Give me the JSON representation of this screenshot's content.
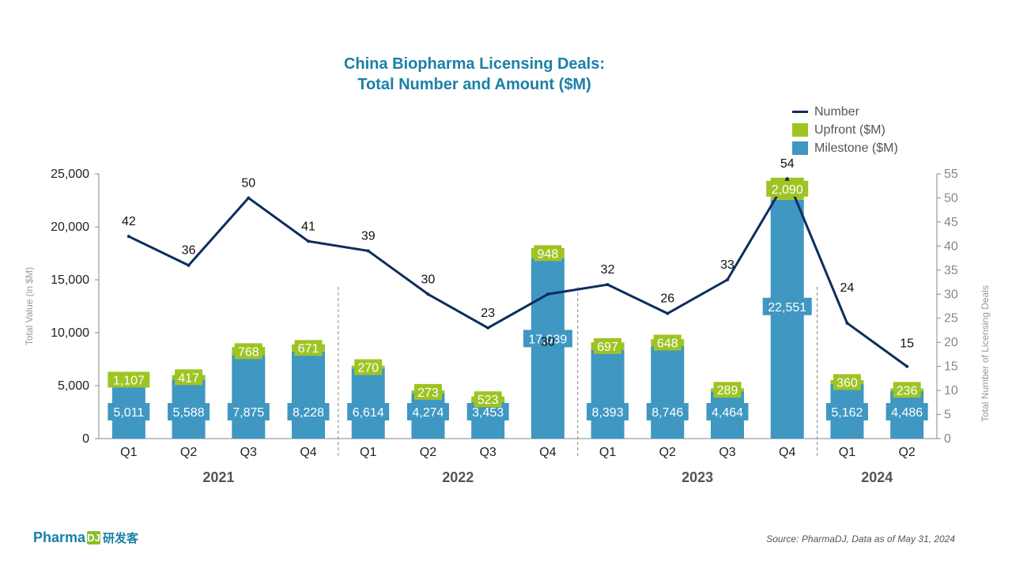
{
  "title_line1": "China Biopharma Licensing Deals:",
  "title_line2": "Total Number and Amount ($M)",
  "legend": {
    "number": "Number",
    "upfront": "Upfront ($M)",
    "milestone": "Milestone ($M)"
  },
  "source": "Source: PharmaDJ, Data as of May 31, 2024",
  "logo": {
    "text": "Pharma",
    "mark": "DJ",
    "cn": "研发客"
  },
  "colors": {
    "milestone": "#3f97c2",
    "upfront": "#9ec424",
    "line": "#0d2d5e",
    "title": "#1a7fa8"
  },
  "chart_data": {
    "type": "bar",
    "categories": [
      "Q1",
      "Q2",
      "Q3",
      "Q4",
      "Q1",
      "Q2",
      "Q3",
      "Q4",
      "Q1",
      "Q2",
      "Q3",
      "Q4",
      "Q1",
      "Q2"
    ],
    "years": [
      {
        "label": "2021",
        "start": 0,
        "end": 3
      },
      {
        "label": "2022",
        "start": 4,
        "end": 7
      },
      {
        "label": "2023",
        "start": 8,
        "end": 11
      },
      {
        "label": "2024",
        "start": 12,
        "end": 13
      }
    ],
    "series": [
      {
        "name": "Milestone ($M)",
        "kind": "bar",
        "values": [
          5011,
          5588,
          7875,
          8228,
          6614,
          4274,
          3453,
          17039,
          8393,
          8746,
          4464,
          22551,
          5162,
          4486
        ],
        "labels": [
          "5,011",
          "5,588",
          "7,875",
          "8,228",
          "6,614",
          "4,274",
          "3,453",
          "17,039",
          "8,393",
          "8,746",
          "4,464",
          "22,551",
          "5,162",
          "4,486"
        ]
      },
      {
        "name": "Upfront ($M)",
        "kind": "bar",
        "values": [
          1107,
          417,
          768,
          671,
          270,
          273,
          523,
          948,
          697,
          648,
          289,
          2090,
          360,
          236
        ],
        "labels": [
          "1,107",
          "417",
          "768",
          "671",
          "270",
          "273",
          "523",
          "948",
          "697",
          "648",
          "289",
          "2,090",
          "360",
          "236"
        ]
      },
      {
        "name": "Number",
        "kind": "line",
        "values": [
          42,
          36,
          50,
          41,
          39,
          30,
          23,
          30,
          32,
          26,
          33,
          54,
          24,
          15
        ]
      }
    ],
    "ylabel": "Total Value (in $M)",
    "y2label": "Total Number of Licensing Deals",
    "ylim": [
      0,
      25000
    ],
    "y2lim": [
      0,
      55
    ],
    "yticks": [
      "0",
      "5,000",
      "10,000",
      "15,000",
      "20,000",
      "25,000"
    ],
    "y2ticks": [
      "0",
      "5",
      "10",
      "15",
      "20",
      "25",
      "30",
      "35",
      "40",
      "45",
      "50",
      "55"
    ]
  }
}
